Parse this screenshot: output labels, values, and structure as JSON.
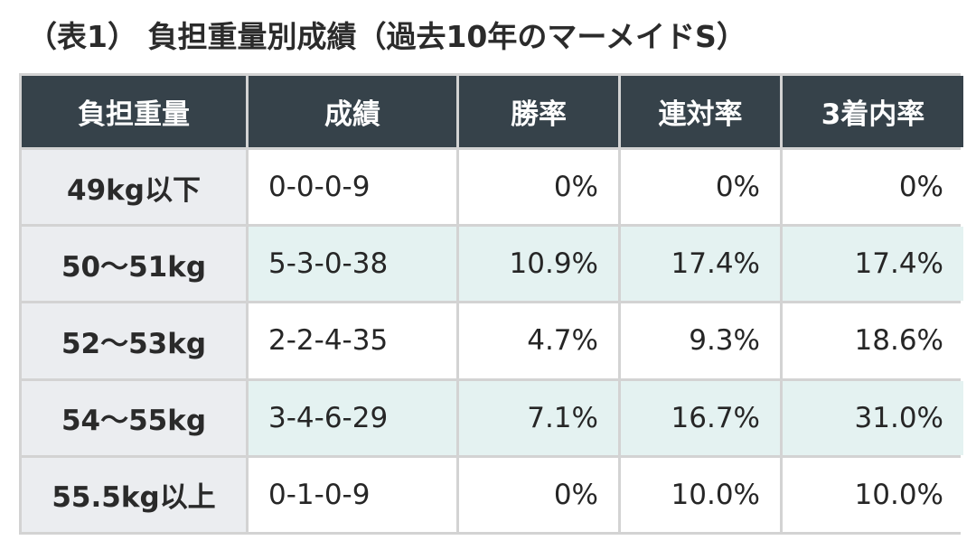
{
  "title": "（表1） 負担重量別成績（過去10年のマーメイドS）",
  "chart_data": {
    "type": "table",
    "columns": [
      "負担重量",
      "成績",
      "勝率",
      "連対率",
      "3着内率"
    ],
    "rows": [
      {
        "weight": "49kg以下",
        "record": "0-0-0-9",
        "win": "0%",
        "top2": "0%",
        "top3": "0%"
      },
      {
        "weight": "50〜51kg",
        "record": "5-3-0-38",
        "win": "10.9%",
        "top2": "17.4%",
        "top3": "17.4%"
      },
      {
        "weight": "52〜53kg",
        "record": "2-2-4-35",
        "win": "4.7%",
        "top2": "9.3%",
        "top3": "18.6%"
      },
      {
        "weight": "54〜55kg",
        "record": "3-4-6-29",
        "win": "7.1%",
        "top2": "16.7%",
        "top3": "31.0%"
      },
      {
        "weight": "55.5kg以上",
        "record": "0-1-0-9",
        "win": "0%",
        "top2": "10.0%",
        "top3": "10.0%"
      }
    ]
  },
  "colors": {
    "header_bg": "#36424a",
    "label_bg": "#ebedf0",
    "shade_bg": "#e4f2f1",
    "border": "#d3d3d3"
  }
}
